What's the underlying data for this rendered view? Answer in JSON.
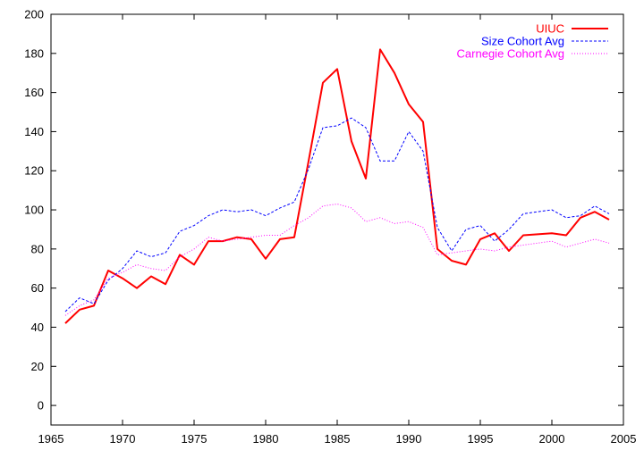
{
  "chart_data": {
    "type": "line",
    "title": "",
    "xlabel": "",
    "ylabel": "",
    "xlim": [
      1965,
      2005
    ],
    "ylim": [
      -10,
      200
    ],
    "x_ticks": [
      1965,
      1970,
      1975,
      1980,
      1985,
      1990,
      1995,
      2000,
      2005
    ],
    "y_ticks": [
      0,
      20,
      40,
      60,
      80,
      100,
      120,
      140,
      160,
      180,
      200
    ],
    "grid": false,
    "legend_position": "top-right",
    "x": [
      1966,
      1967,
      1968,
      1969,
      1970,
      1971,
      1972,
      1973,
      1974,
      1975,
      1976,
      1977,
      1978,
      1979,
      1980,
      1981,
      1982,
      1983,
      1984,
      1985,
      1986,
      1987,
      1988,
      1989,
      1990,
      1991,
      1992,
      1993,
      1994,
      1995,
      1996,
      1997,
      1998,
      1999,
      2000,
      2001,
      2002,
      2003,
      2004
    ],
    "series": [
      {
        "name": "UIUC",
        "color": "#ff0000",
        "style": "solid",
        "values": [
          42,
          49,
          51,
          69,
          65,
          60,
          66,
          62,
          77,
          72,
          84,
          84,
          86,
          85,
          75,
          85,
          86,
          125,
          165,
          172,
          135,
          116,
          182,
          170,
          154,
          145,
          80,
          74,
          72,
          85,
          88,
          79,
          87,
          87.5,
          88,
          87,
          96,
          99,
          95
        ]
      },
      {
        "name": "Size Cohort Avg",
        "color": "#0000ff",
        "style": "dashed",
        "values": [
          48,
          55,
          52,
          64,
          70,
          79,
          76,
          78,
          89,
          92,
          97,
          100,
          99,
          100,
          97,
          101,
          104,
          121,
          142,
          143,
          147,
          142,
          125,
          125,
          140,
          130,
          91,
          79,
          90,
          92,
          84,
          90,
          98,
          99,
          100,
          96,
          97,
          102,
          98
        ]
      },
      {
        "name": "Carnegie Cohort Avg",
        "color": "#ff00ff",
        "style": "dotted",
        "values": [
          46,
          51,
          54,
          65,
          68,
          72,
          70,
          69,
          76,
          80,
          86,
          84,
          85,
          86,
          87,
          87,
          92,
          96,
          102,
          103,
          101,
          94,
          96,
          93,
          94,
          91,
          77,
          78,
          79,
          80,
          79,
          81,
          82,
          83,
          84,
          81,
          83,
          85,
          83
        ]
      }
    ]
  }
}
